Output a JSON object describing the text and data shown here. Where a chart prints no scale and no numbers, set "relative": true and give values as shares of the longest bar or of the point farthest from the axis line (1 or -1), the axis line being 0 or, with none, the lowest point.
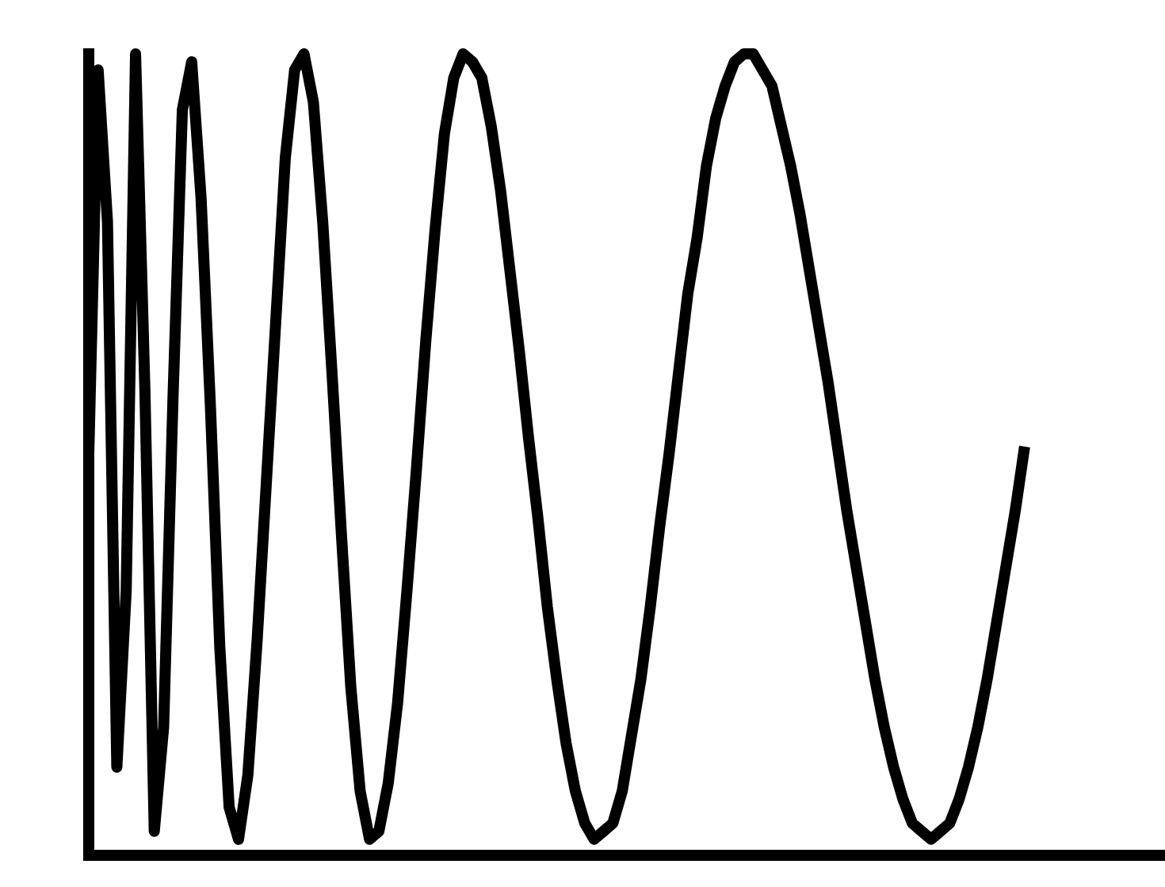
{
  "chart_data": {
    "type": "line",
    "relative": true,
    "legend": false,
    "categories": [
      null,
      null,
      null,
      null,
      null,
      null,
      null,
      null,
      null,
      null,
      null,
      null,
      null,
      null,
      null,
      null,
      null,
      null,
      null,
      null,
      null,
      null,
      null,
      null,
      null,
      null,
      null,
      null,
      null,
      null,
      null,
      null,
      null,
      null,
      null,
      null,
      null,
      null,
      null,
      null,
      null,
      null,
      null,
      null,
      null,
      null,
      null,
      null,
      null,
      null,
      null,
      null,
      null,
      null,
      null,
      null,
      null,
      null,
      null,
      null,
      null,
      null,
      null,
      null,
      null,
      null,
      null,
      null,
      null,
      null,
      null,
      null,
      null,
      null,
      null,
      null,
      null,
      null,
      null,
      null,
      null,
      null,
      null,
      null,
      null,
      null,
      null,
      null,
      null,
      null,
      null,
      null,
      null,
      null,
      null,
      null,
      null,
      null,
      null,
      null,
      null,
      null,
      null,
      null,
      null,
      null,
      null,
      null,
      null,
      null,
      null,
      null,
      null,
      null,
      null,
      null
    ],
    "series": [
      {
        "color": "#000000",
        "values": [
          0.5,
          0.98,
          0.79,
          0.11,
          0.33,
          1.0,
          0.58,
          0.03,
          0.16,
          0.57,
          0.93,
          0.99,
          0.82,
          0.56,
          0.26,
          0.06,
          0.02,
          0.1,
          0.27,
          0.47,
          0.67,
          0.87,
          0.98,
          1.0,
          0.94,
          0.79,
          0.6,
          0.4,
          0.21,
          0.08,
          0.02,
          0.03,
          0.09,
          0.19,
          0.33,
          0.48,
          0.64,
          0.78,
          0.9,
          0.97,
          1.0,
          0.99,
          0.97,
          0.91,
          0.83,
          0.73,
          0.63,
          0.52,
          0.42,
          0.31,
          0.22,
          0.14,
          0.08,
          0.04,
          0.02,
          0.03,
          0.04,
          0.08,
          0.15,
          0.22,
          0.31,
          0.41,
          0.5,
          0.6,
          0.7,
          0.77,
          0.86,
          0.92,
          0.96,
          0.99,
          1.0,
          1.0,
          0.98,
          0.96,
          0.91,
          0.86,
          0.8,
          0.73,
          0.66,
          0.59,
          0.51,
          0.43,
          0.36,
          0.29,
          0.22,
          0.16,
          0.11,
          0.07,
          0.04,
          0.03,
          0.02,
          0.03,
          0.04,
          0.07,
          0.11,
          0.16,
          0.22,
          0.29,
          0.36,
          0.43,
          0.51,
          null,
          null,
          null,
          null,
          null,
          null,
          null,
          null,
          null,
          null,
          null,
          null,
          null,
          null,
          null
        ]
      }
    ]
  }
}
